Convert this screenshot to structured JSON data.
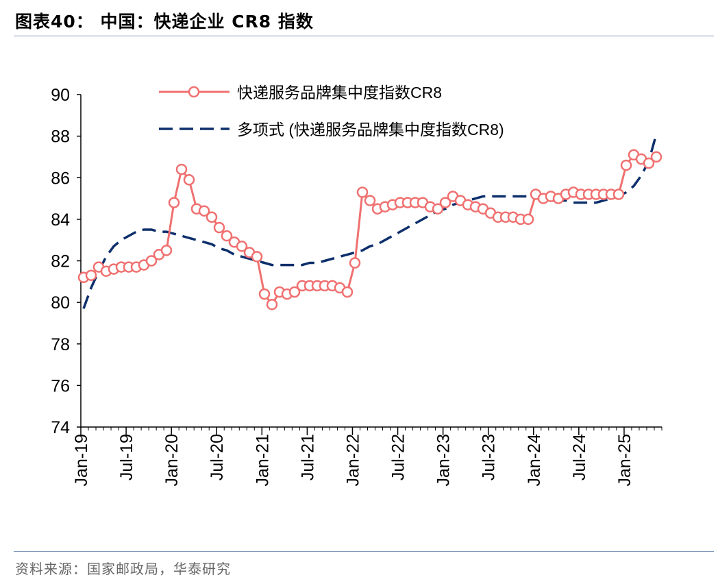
{
  "page": {
    "title": "图表40：  中国：快递企业 CR8 指数",
    "source": "资料来源：国家邮政局，华泰研究"
  },
  "chart_data": {
    "type": "line",
    "title": "",
    "xlabel": "",
    "ylabel": "",
    "ylim": [
      74,
      90
    ],
    "yticks": [
      74,
      76,
      78,
      80,
      82,
      84,
      86,
      88,
      90
    ],
    "x_start": "2019-01",
    "xtick_labels": [
      "Jan-19",
      "Jul-19",
      "Jan-20",
      "Jul-20",
      "Jan-21",
      "Jul-21",
      "Jan-22",
      "Jul-22",
      "Jan-23",
      "Jul-23",
      "Jan-24",
      "Jul-24",
      "Jan-25"
    ],
    "grid": false,
    "legend_position": "top-center",
    "colors": {
      "series": "#f07070",
      "trend": "#0d2f6b",
      "axis": "#000000"
    },
    "series": [
      {
        "name": "快递服务品牌集中度指数CR8",
        "style": "solid-marker",
        "values": [
          81.2,
          81.3,
          81.7,
          81.5,
          81.6,
          81.7,
          81.7,
          81.7,
          81.8,
          82.0,
          82.3,
          82.5,
          84.8,
          86.4,
          85.9,
          84.5,
          84.4,
          84.1,
          83.6,
          83.2,
          82.9,
          82.7,
          82.4,
          82.2,
          80.4,
          79.9,
          80.5,
          80.4,
          80.5,
          80.8,
          80.8,
          80.8,
          80.8,
          80.8,
          80.7,
          80.5,
          81.9,
          85.3,
          84.9,
          84.5,
          84.6,
          84.7,
          84.8,
          84.8,
          84.8,
          84.8,
          84.6,
          84.5,
          84.8,
          85.1,
          84.9,
          84.7,
          84.6,
          84.5,
          84.3,
          84.1,
          84.1,
          84.1,
          84.0,
          84.0,
          85.2,
          85.0,
          85.1,
          85.0,
          85.2,
          85.3,
          85.2,
          85.2,
          85.2,
          85.2,
          85.2,
          85.2,
          86.6,
          87.1,
          86.9,
          86.7,
          87.0
        ]
      },
      {
        "name": "多项式 (快递服务品牌集中度指数CR8)",
        "style": "dashed",
        "values": [
          79.7,
          80.7,
          81.5,
          82.2,
          82.7,
          83.0,
          83.2,
          83.4,
          83.5,
          83.5,
          83.4,
          83.4,
          83.3,
          83.2,
          83.1,
          83.0,
          82.9,
          82.8,
          82.6,
          82.5,
          82.3,
          82.2,
          82.1,
          82.0,
          81.9,
          81.8,
          81.8,
          81.8,
          81.8,
          81.8,
          81.9,
          81.9,
          82.0,
          82.1,
          82.2,
          82.3,
          82.4,
          82.5,
          82.7,
          82.8,
          83.0,
          83.2,
          83.4,
          83.6,
          83.8,
          84.0,
          84.2,
          84.4,
          84.5,
          84.7,
          84.8,
          84.9,
          85.0,
          85.1,
          85.1,
          85.1,
          85.1,
          85.1,
          85.1,
          85.1,
          85.0,
          85.0,
          84.9,
          84.9,
          84.9,
          84.8,
          84.8,
          84.8,
          84.8,
          84.9,
          85.0,
          85.1,
          85.3,
          85.6,
          86.1,
          86.8,
          88.1
        ]
      }
    ]
  }
}
